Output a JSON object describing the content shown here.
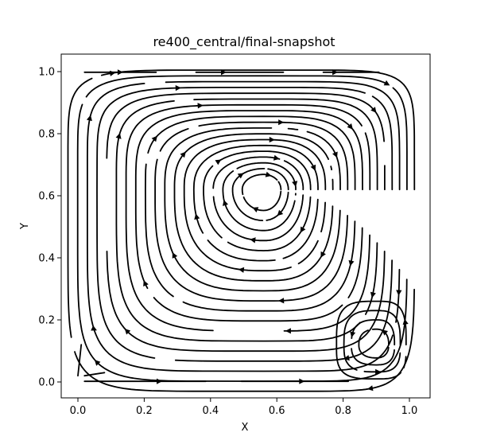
{
  "chart_data": {
    "type": "streamplot",
    "title": "re400_central/final-snapshot",
    "xlabel": "X",
    "ylabel": "Y",
    "xlim": [
      -0.05,
      1.05
    ],
    "ylim": [
      -0.05,
      1.05
    ],
    "xticks": [
      "0.0",
      "0.2",
      "0.4",
      "0.6",
      "0.8",
      "1.0"
    ],
    "yticks": [
      "0.0",
      "0.2",
      "0.4",
      "0.6",
      "0.8",
      "1.0"
    ],
    "grid": false,
    "line_color": "#000000",
    "primary_vortex": {
      "center": [
        0.56,
        0.62
      ],
      "rotation": "clockwise"
    },
    "secondary_vortex": {
      "center": [
        0.9,
        0.12
      ],
      "rotation": "counter-clockwise"
    },
    "lid": {
      "y": 1.0,
      "direction": "right"
    }
  }
}
